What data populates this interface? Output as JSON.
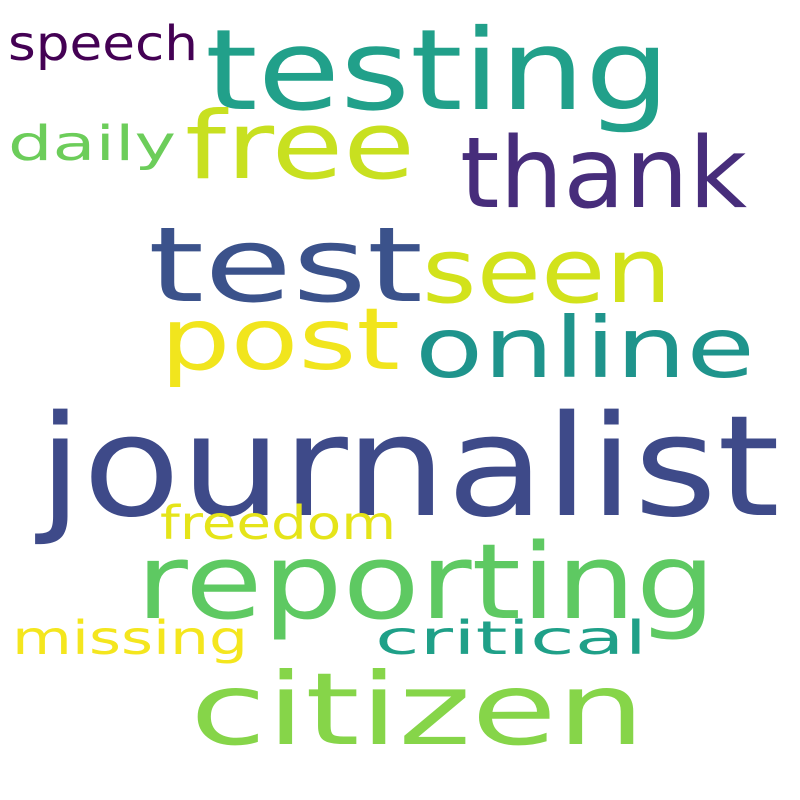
{
  "words": [
    {
      "text": "journalist",
      "color": "#3e4a89"
    },
    {
      "text": "testing",
      "color": "#21a08a"
    },
    {
      "text": "reporting",
      "color": "#5ec962"
    },
    {
      "text": "citizen",
      "color": "#86d549"
    },
    {
      "text": "test",
      "color": "#3b528b"
    },
    {
      "text": "thank",
      "color": "#472d7b"
    },
    {
      "text": "free",
      "color": "#c8e020"
    },
    {
      "text": "seen",
      "color": "#d2e21b"
    },
    {
      "text": "post",
      "color": "#f1e51d"
    },
    {
      "text": "online",
      "color": "#1f948c"
    },
    {
      "text": "speech",
      "color": "#440154"
    },
    {
      "text": "daily",
      "color": "#6ccd5a"
    },
    {
      "text": "freedom",
      "color": "#e5e419"
    },
    {
      "text": "missing",
      "color": "#f4e61e"
    },
    {
      "text": "critical",
      "color": "#1fa088"
    }
  ]
}
